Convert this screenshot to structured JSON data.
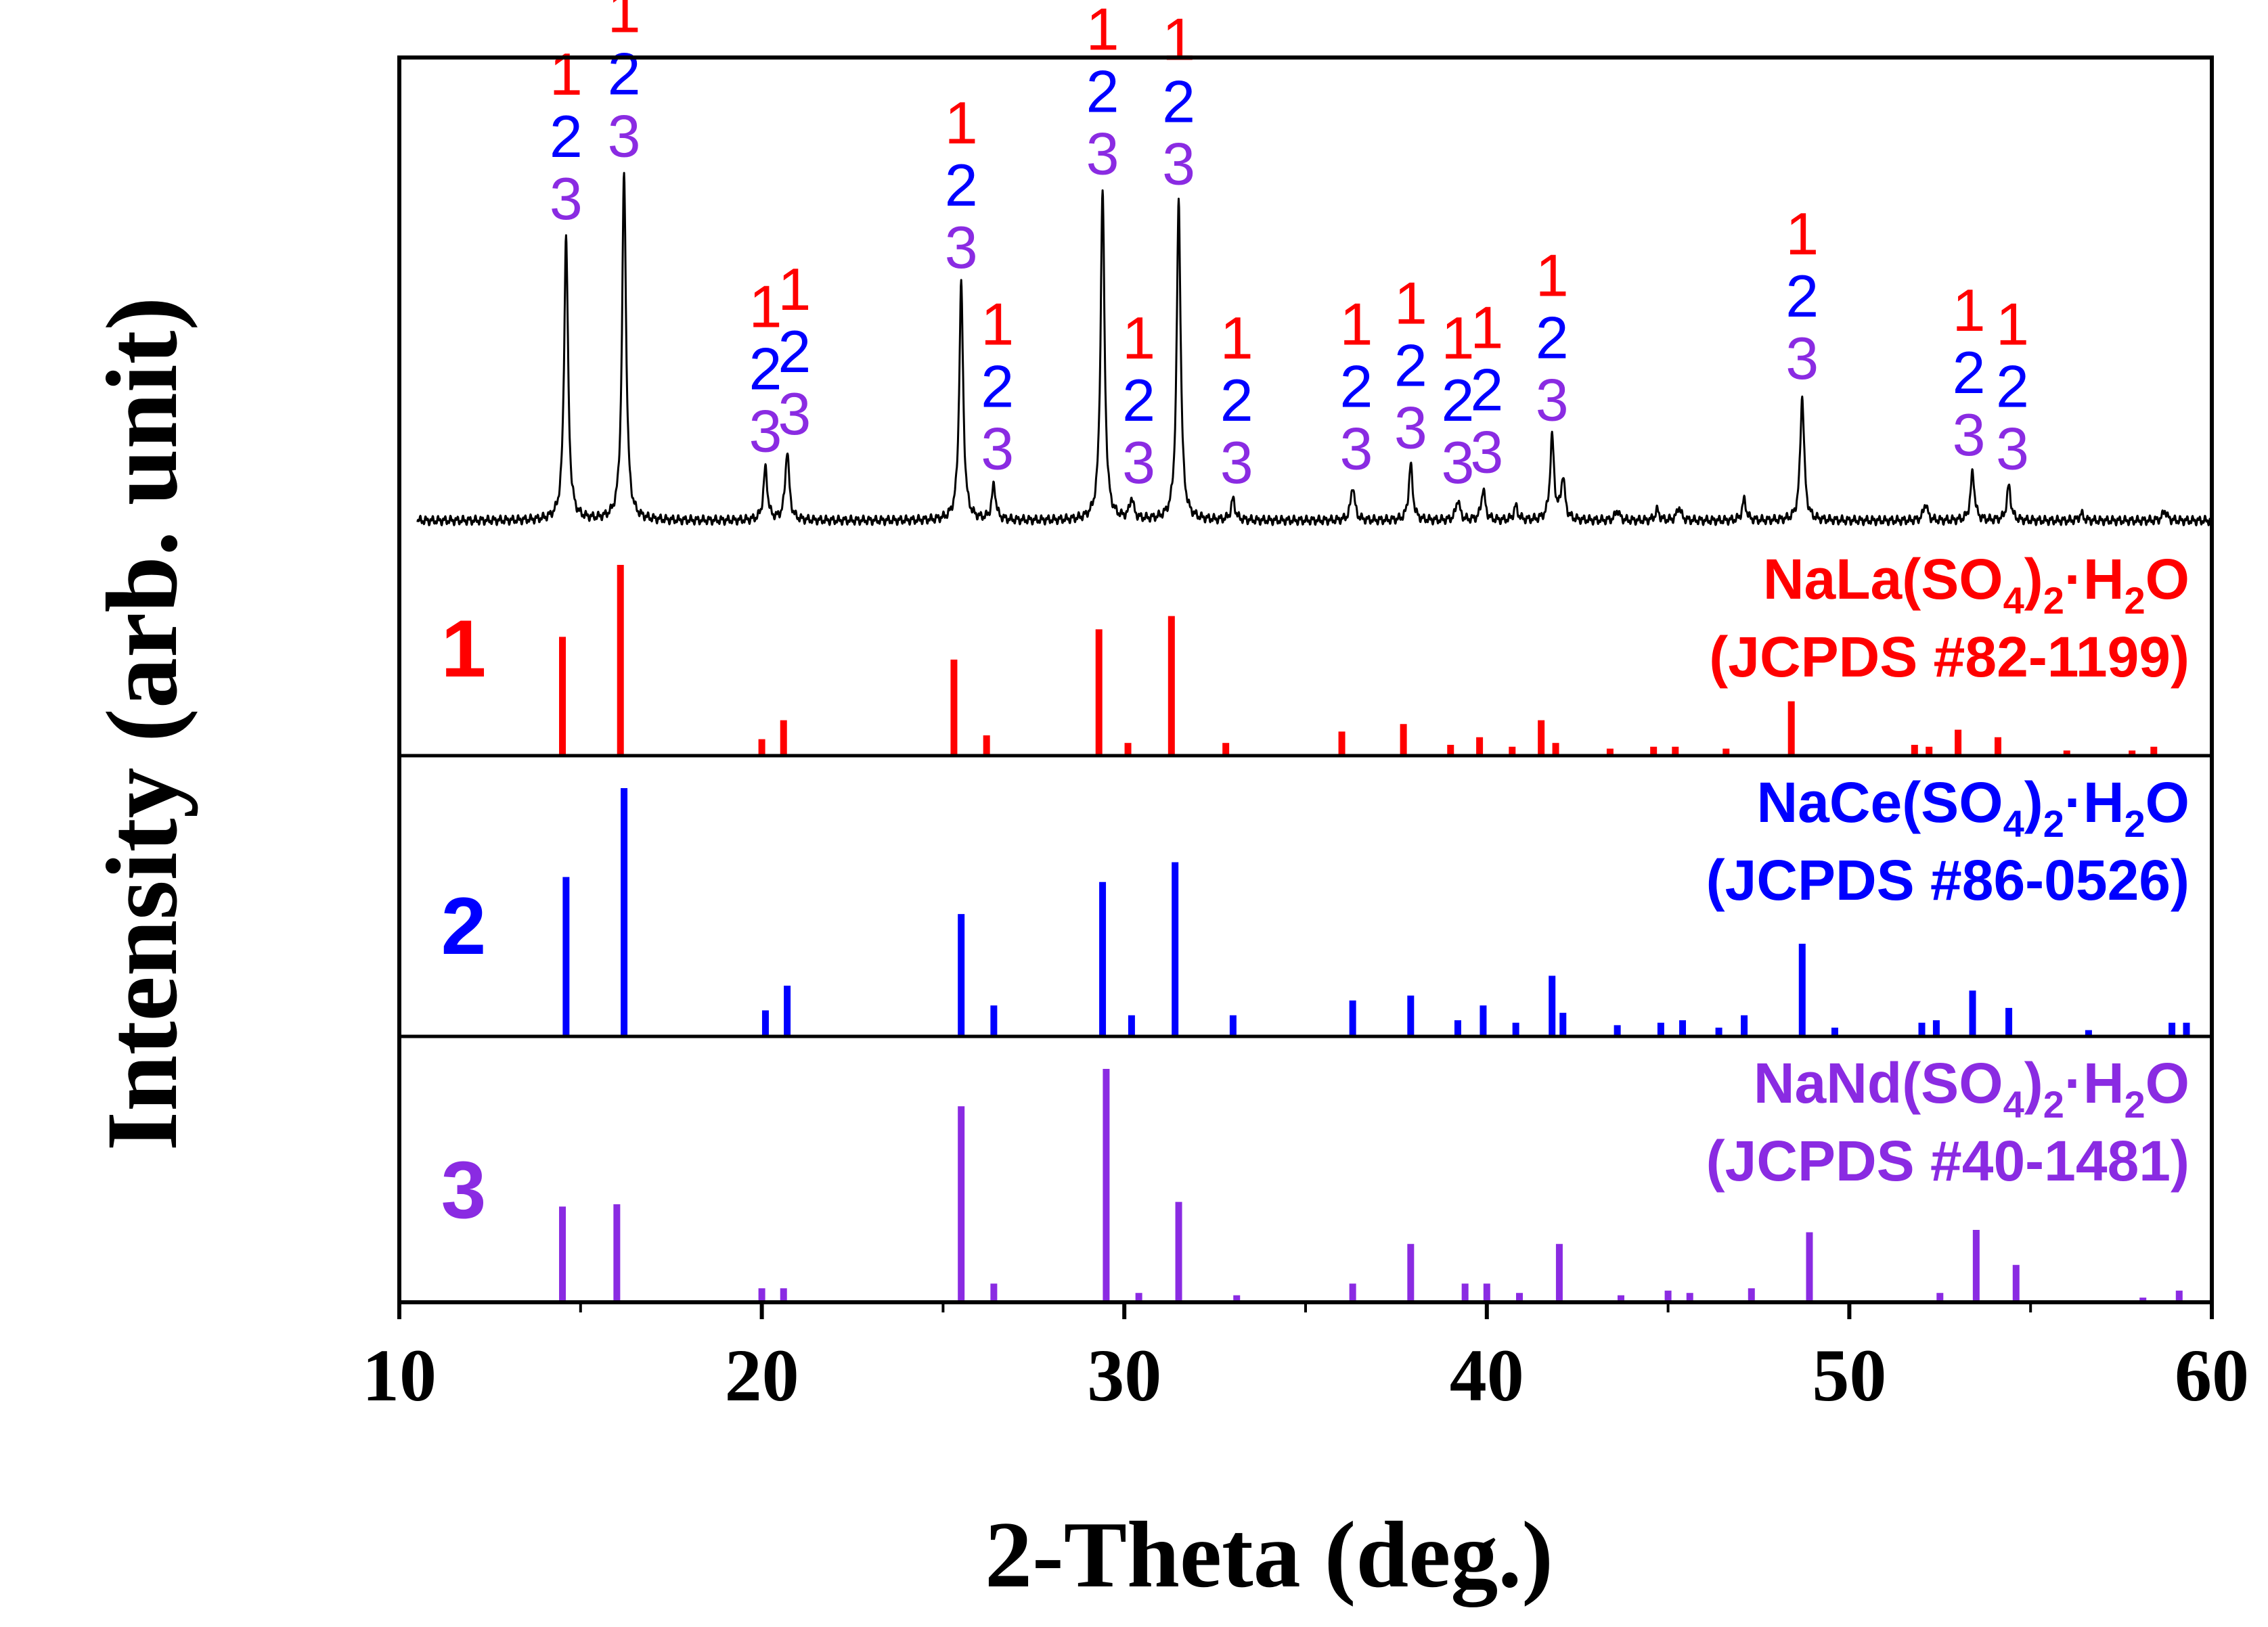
{
  "chart_data": {
    "type": "line",
    "xlabel": "2-Theta (deg.)",
    "ylabel": "Intensity (arb. unit)",
    "xlim": [
      10,
      60
    ],
    "xticks": [
      10,
      20,
      30,
      40,
      50,
      60
    ],
    "xtick_labels": [
      "10",
      "20",
      "30",
      "40",
      "50",
      "60"
    ],
    "colors": {
      "ref1": "#ff0000",
      "ref2": "#0000ff",
      "ref3": "#8a2be2",
      "sample": "#000000",
      "axis": "#000000"
    },
    "sample_pattern": {
      "name": "Experimental XRD pattern",
      "color": "#000000",
      "baseline": 0.03,
      "peaks": [
        {
          "x": 14.6,
          "y": 0.82
        },
        {
          "x": 16.2,
          "y": 1.0
        },
        {
          "x": 20.1,
          "y": 0.15
        },
        {
          "x": 20.7,
          "y": 0.2
        },
        {
          "x": 25.5,
          "y": 0.68
        },
        {
          "x": 26.4,
          "y": 0.1
        },
        {
          "x": 29.4,
          "y": 0.95
        },
        {
          "x": 30.2,
          "y": 0.06
        },
        {
          "x": 31.5,
          "y": 0.92
        },
        {
          "x": 33.0,
          "y": 0.06
        },
        {
          "x": 36.3,
          "y": 0.1
        },
        {
          "x": 37.9,
          "y": 0.16
        },
        {
          "x": 39.2,
          "y": 0.06
        },
        {
          "x": 39.9,
          "y": 0.09
        },
        {
          "x": 40.8,
          "y": 0.04
        },
        {
          "x": 41.8,
          "y": 0.24
        },
        {
          "x": 42.1,
          "y": 0.12
        },
        {
          "x": 43.6,
          "y": 0.03
        },
        {
          "x": 44.7,
          "y": 0.03
        },
        {
          "x": 45.3,
          "y": 0.04
        },
        {
          "x": 47.1,
          "y": 0.06
        },
        {
          "x": 48.7,
          "y": 0.36
        },
        {
          "x": 52.1,
          "y": 0.05
        },
        {
          "x": 53.4,
          "y": 0.14
        },
        {
          "x": 54.4,
          "y": 0.1
        },
        {
          "x": 56.4,
          "y": 0.02
        },
        {
          "x": 58.7,
          "y": 0.03
        }
      ]
    },
    "peak_labels": [
      {
        "x": 14.6,
        "stack": [
          "1",
          "2",
          "3"
        ]
      },
      {
        "x": 16.2,
        "stack": [
          "1",
          "2",
          "3"
        ]
      },
      {
        "x": 20.1,
        "stack": [
          "1",
          "2",
          "3"
        ]
      },
      {
        "x": 20.9,
        "stack": [
          "1",
          "2",
          "3"
        ]
      },
      {
        "x": 25.5,
        "stack": [
          "1",
          "2",
          "3"
        ]
      },
      {
        "x": 26.5,
        "stack": [
          "1",
          "2",
          "3"
        ]
      },
      {
        "x": 29.4,
        "stack": [
          "1",
          "2",
          "3"
        ]
      },
      {
        "x": 30.4,
        "stack": [
          "1",
          "2",
          "3"
        ]
      },
      {
        "x": 31.5,
        "stack": [
          "1",
          "2",
          "3"
        ]
      },
      {
        "x": 33.1,
        "stack": [
          "1",
          "2",
          "3"
        ]
      },
      {
        "x": 36.4,
        "stack": [
          "1",
          "2",
          "3"
        ]
      },
      {
        "x": 37.9,
        "stack": [
          "1",
          "2",
          "3"
        ]
      },
      {
        "x": 39.2,
        "stack": [
          "1",
          "2",
          "3"
        ]
      },
      {
        "x": 40.0,
        "stack": [
          "1",
          "2",
          "3"
        ]
      },
      {
        "x": 41.8,
        "stack": [
          "1",
          "2",
          "3"
        ]
      },
      {
        "x": 48.7,
        "stack": [
          "1",
          "2",
          "3"
        ]
      },
      {
        "x": 53.3,
        "stack": [
          "1",
          "2",
          "3"
        ]
      },
      {
        "x": 54.5,
        "stack": [
          "1",
          "2",
          "3"
        ]
      }
    ],
    "references": [
      {
        "id": "1",
        "marker": "1",
        "formula": "NaLa(SO4)2·H2O",
        "formula_parts": [
          "NaLa(SO",
          "4",
          ")",
          "2",
          "·H",
          "2",
          "O"
        ],
        "jcpds": "(JCPDS #82-1199)",
        "color": "#ff0000",
        "lines": [
          {
            "x": 14.5,
            "y": 0.62
          },
          {
            "x": 16.1,
            "y": 1.0
          },
          {
            "x": 20.0,
            "y": 0.08
          },
          {
            "x": 20.6,
            "y": 0.18
          },
          {
            "x": 25.3,
            "y": 0.5
          },
          {
            "x": 26.2,
            "y": 0.1
          },
          {
            "x": 29.3,
            "y": 0.66
          },
          {
            "x": 30.1,
            "y": 0.06
          },
          {
            "x": 31.3,
            "y": 0.73
          },
          {
            "x": 32.8,
            "y": 0.06
          },
          {
            "x": 36.0,
            "y": 0.12
          },
          {
            "x": 37.7,
            "y": 0.16
          },
          {
            "x": 39.0,
            "y": 0.05
          },
          {
            "x": 39.8,
            "y": 0.09
          },
          {
            "x": 40.7,
            "y": 0.04
          },
          {
            "x": 41.5,
            "y": 0.18
          },
          {
            "x": 41.9,
            "y": 0.06
          },
          {
            "x": 43.4,
            "y": 0.03
          },
          {
            "x": 44.6,
            "y": 0.04
          },
          {
            "x": 45.2,
            "y": 0.04
          },
          {
            "x": 46.6,
            "y": 0.03
          },
          {
            "x": 48.4,
            "y": 0.28
          },
          {
            "x": 51.8,
            "y": 0.05
          },
          {
            "x": 52.2,
            "y": 0.04
          },
          {
            "x": 53.0,
            "y": 0.13
          },
          {
            "x": 54.1,
            "y": 0.09
          },
          {
            "x": 56.0,
            "y": 0.02
          },
          {
            "x": 57.8,
            "y": 0.02
          },
          {
            "x": 58.4,
            "y": 0.04
          }
        ]
      },
      {
        "id": "2",
        "marker": "2",
        "formula": "NaCe(SO4)2·H2O",
        "formula_parts": [
          "NaCe(SO",
          "4",
          ")",
          "2",
          "·H",
          "2",
          "O"
        ],
        "jcpds": "(JCPDS #86-0526)",
        "color": "#0000ff",
        "lines": [
          {
            "x": 14.6,
            "y": 0.64
          },
          {
            "x": 16.2,
            "y": 1.0
          },
          {
            "x": 20.1,
            "y": 0.1
          },
          {
            "x": 20.7,
            "y": 0.2
          },
          {
            "x": 25.5,
            "y": 0.49
          },
          {
            "x": 26.4,
            "y": 0.12
          },
          {
            "x": 29.4,
            "y": 0.62
          },
          {
            "x": 30.2,
            "y": 0.08
          },
          {
            "x": 31.4,
            "y": 0.7
          },
          {
            "x": 33.0,
            "y": 0.08
          },
          {
            "x": 36.3,
            "y": 0.14
          },
          {
            "x": 37.9,
            "y": 0.16
          },
          {
            "x": 39.2,
            "y": 0.06
          },
          {
            "x": 39.9,
            "y": 0.12
          },
          {
            "x": 40.8,
            "y": 0.05
          },
          {
            "x": 41.8,
            "y": 0.24
          },
          {
            "x": 42.1,
            "y": 0.09
          },
          {
            "x": 43.6,
            "y": 0.04
          },
          {
            "x": 44.8,
            "y": 0.05
          },
          {
            "x": 45.4,
            "y": 0.06
          },
          {
            "x": 46.4,
            "y": 0.03
          },
          {
            "x": 47.1,
            "y": 0.08
          },
          {
            "x": 48.7,
            "y": 0.37
          },
          {
            "x": 49.6,
            "y": 0.03
          },
          {
            "x": 52.0,
            "y": 0.05
          },
          {
            "x": 52.4,
            "y": 0.06
          },
          {
            "x": 53.4,
            "y": 0.18
          },
          {
            "x": 54.4,
            "y": 0.11
          },
          {
            "x": 56.6,
            "y": 0.02
          },
          {
            "x": 58.9,
            "y": 0.05
          },
          {
            "x": 59.3,
            "y": 0.05
          }
        ]
      },
      {
        "id": "3",
        "marker": "3",
        "formula": "NaNd(SO4)2·H2O",
        "formula_parts": [
          "NaNd(SO",
          "4",
          ")",
          "2",
          "·H",
          "2",
          "O"
        ],
        "jcpds": "(JCPDS #40-1481)",
        "color": "#8a2be2",
        "lines": [
          {
            "x": 14.5,
            "y": 0.41
          },
          {
            "x": 16.0,
            "y": 0.42
          },
          {
            "x": 20.0,
            "y": 0.06
          },
          {
            "x": 20.6,
            "y": 0.06
          },
          {
            "x": 25.5,
            "y": 0.84
          },
          {
            "x": 26.4,
            "y": 0.08
          },
          {
            "x": 29.5,
            "y": 1.0
          },
          {
            "x": 30.4,
            "y": 0.04
          },
          {
            "x": 31.5,
            "y": 0.43
          },
          {
            "x": 33.1,
            "y": 0.03
          },
          {
            "x": 36.3,
            "y": 0.08
          },
          {
            "x": 37.9,
            "y": 0.25
          },
          {
            "x": 39.4,
            "y": 0.08
          },
          {
            "x": 40.0,
            "y": 0.08
          },
          {
            "x": 40.9,
            "y": 0.04
          },
          {
            "x": 42.0,
            "y": 0.25
          },
          {
            "x": 43.7,
            "y": 0.03
          },
          {
            "x": 45.0,
            "y": 0.05
          },
          {
            "x": 45.6,
            "y": 0.04
          },
          {
            "x": 47.3,
            "y": 0.06
          },
          {
            "x": 48.9,
            "y": 0.3
          },
          {
            "x": 52.5,
            "y": 0.04
          },
          {
            "x": 53.5,
            "y": 0.31
          },
          {
            "x": 54.6,
            "y": 0.16
          },
          {
            "x": 58.1,
            "y": 0.02
          },
          {
            "x": 59.1,
            "y": 0.05
          }
        ]
      }
    ]
  }
}
